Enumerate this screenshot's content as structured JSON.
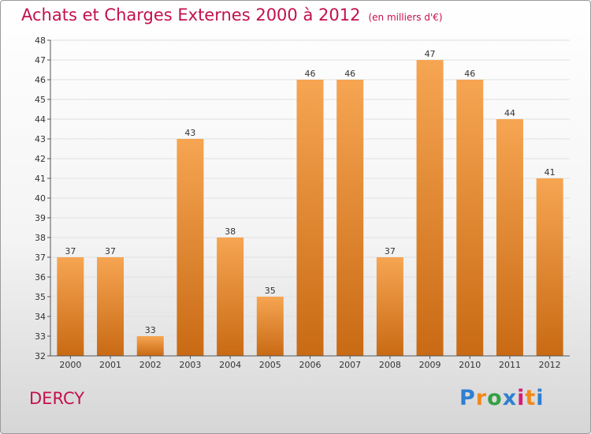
{
  "header": {
    "title": "Achats et Charges Externes 2000 à 2012",
    "unit": "(en milliers d'€)"
  },
  "footer": {
    "city": "DERCY",
    "logo_letters": [
      "P",
      "r",
      "o",
      "x",
      "i",
      "t",
      "i"
    ],
    "logo_colors": [
      "#2f7fd0",
      "#f08a1a",
      "#33a047",
      "#2f7fd0",
      "#d61b7a",
      "#f08a1a",
      "#2f7fd0"
    ]
  },
  "colors": {
    "bar_top": "#f6a552",
    "bar_bottom": "#c96a14",
    "axis": "#555555",
    "grid": "#e0e0e0",
    "title": "#c4104e"
  },
  "chart_data": {
    "type": "bar",
    "title": "Achats et Charges Externes 2000 à 2012",
    "subtitle": "(en milliers d'€)",
    "categories": [
      "2000",
      "2001",
      "2002",
      "2003",
      "2004",
      "2005",
      "2006",
      "2007",
      "2008",
      "2009",
      "2010",
      "2011",
      "2012"
    ],
    "values": [
      37,
      37,
      33,
      43,
      38,
      35,
      46,
      46,
      37,
      47,
      46,
      44,
      41
    ],
    "ylim": [
      32,
      48
    ],
    "yticks": [
      32,
      33,
      34,
      35,
      36,
      37,
      38,
      39,
      40,
      41,
      42,
      43,
      44,
      45,
      46,
      47,
      48
    ],
    "grid": true,
    "legend": "none"
  }
}
